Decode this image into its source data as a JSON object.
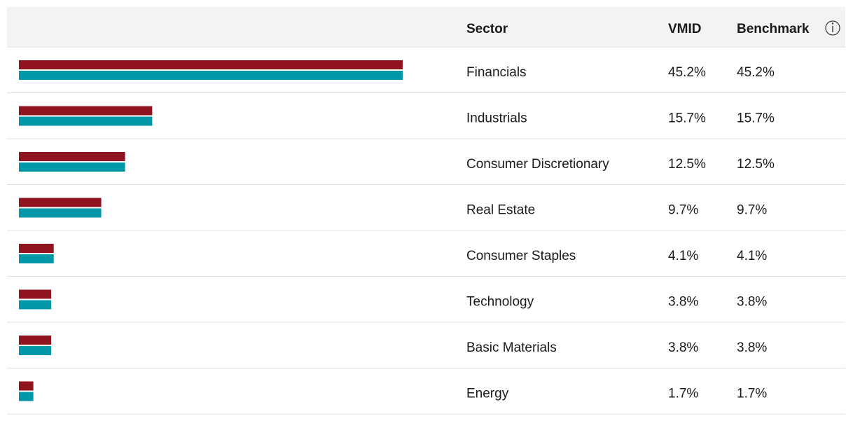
{
  "chart_data": {
    "type": "bar",
    "category_label": "Sector",
    "categories": [
      "Financials",
      "Industrials",
      "Consumer Discretionary",
      "Real Estate",
      "Consumer Staples",
      "Technology",
      "Basic Materials",
      "Energy"
    ],
    "series": [
      {
        "name": "VMID",
        "color": "#8f1420",
        "values": [
          45.2,
          15.7,
          12.5,
          9.7,
          4.1,
          3.8,
          3.8,
          1.7
        ],
        "value_labels": [
          "45.2%",
          "15.7%",
          "12.5%",
          "9.7%",
          "4.1%",
          "3.8%",
          "3.8%",
          "1.7%"
        ]
      },
      {
        "name": "Benchmark",
        "color": "#0097a7",
        "values": [
          45.2,
          15.7,
          12.5,
          9.7,
          4.1,
          3.8,
          3.8,
          1.7
        ],
        "value_labels": [
          "45.2%",
          "15.7%",
          "12.5%",
          "9.7%",
          "4.1%",
          "3.8%",
          "3.8%",
          "1.7%"
        ]
      }
    ]
  }
}
